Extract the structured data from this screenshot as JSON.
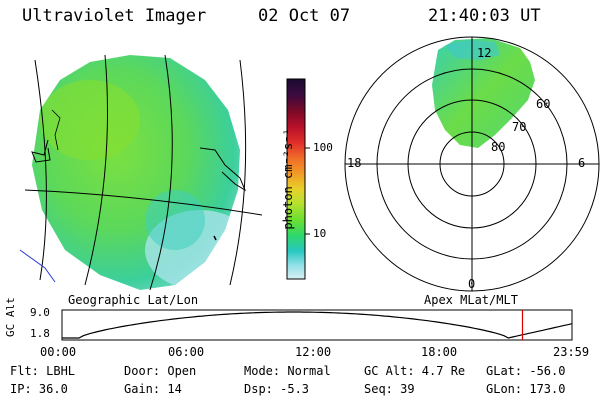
{
  "header": {
    "title": "Ultraviolet Imager",
    "date": "02 Oct 07",
    "time": "21:40:03 UT"
  },
  "left_map": {
    "label": "Geographic Lat/Lon"
  },
  "right_map": {
    "label": "Apex MLat/MLT",
    "mlt_labels": [
      "12",
      "18",
      "6",
      "0"
    ],
    "mlat_labels": [
      "60",
      "70",
      "80"
    ]
  },
  "colorbar": {
    "unit_label": "photon cm⁻²s⁻¹",
    "tick_labels": [
      "100",
      "10"
    ],
    "colors": [
      "#1a0a2e",
      "#3b0a40",
      "#7a0a28",
      "#b8102a",
      "#e0302a",
      "#f07028",
      "#f0a028",
      "#e8d02a",
      "#b8e030",
      "#70e030",
      "#30d868",
      "#28c8c0",
      "#90e0e8",
      "#d8eef2"
    ]
  },
  "orbit": {
    "ylabel": "GC Alt",
    "ytick_labels": [
      "9.0",
      "1.8"
    ],
    "xtick_labels": [
      "00:00",
      "06:00",
      "12:00",
      "18:00",
      "23:59"
    ],
    "marker_color": "#e00000",
    "marker_time_hours": 21.67
  },
  "status": {
    "row1": [
      "Flt: LBHL",
      "Door: Open",
      "Mode: Normal",
      "GC Alt: 4.7 Re",
      "GLat: -56.0"
    ],
    "row2": [
      "IP: 36.0",
      "Gain: 14",
      "Dsp:  -5.3",
      "Seq: 39",
      "GLon: 173.0"
    ]
  }
}
